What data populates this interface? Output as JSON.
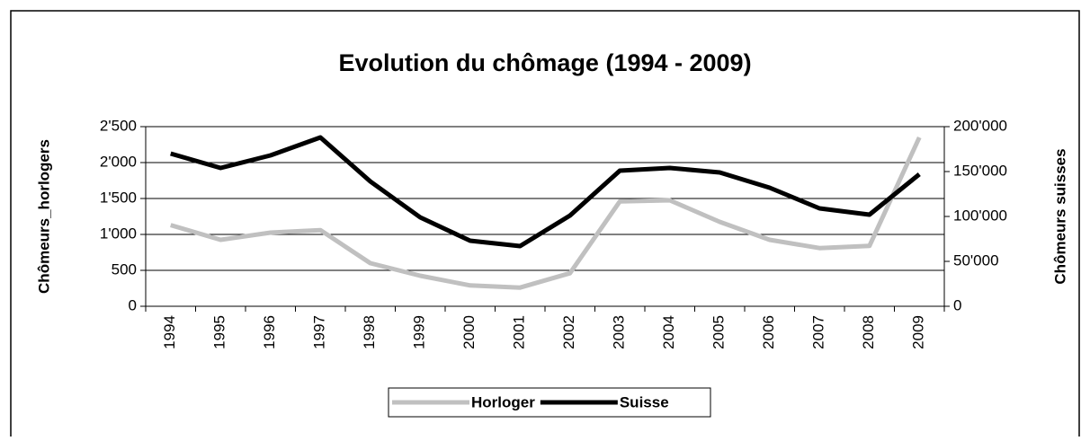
{
  "chart_data": {
    "type": "line",
    "title": "Evolution du chômage (1994 - 2009)",
    "y_label": "Chômeurs_horlogers",
    "y2_label": "Chômeurs suisses",
    "categories": [
      "1994",
      "1995",
      "1996",
      "1997",
      "1998",
      "1999",
      "2000",
      "2001",
      "2002",
      "2003",
      "2004",
      "2005",
      "2006",
      "2007",
      "2008",
      "2009"
    ],
    "series": [
      {
        "name": "Horloger",
        "color": "#c0c0c0",
        "values": [
          1130,
          925,
          1025,
          1060,
          600,
          425,
          290,
          260,
          460,
          1460,
          1475,
          1175,
          925,
          810,
          840,
          2350
        ]
      },
      {
        "name": "Suisse",
        "color": "#000000",
        "axis": "y2",
        "values": [
          170000,
          154000,
          168000,
          188000,
          139000,
          99000,
          73000,
          67000,
          101000,
          151000,
          154000,
          149000,
          132000,
          109000,
          102000,
          147000
        ]
      }
    ],
    "ylim": [
      0,
      2500
    ],
    "yticks": [
      0,
      500,
      {
        "value": 1000,
        "label": "1'000"
      },
      {
        "value": 1500,
        "label": "1'500"
      },
      {
        "value": 2000,
        "label": "2'000"
      },
      {
        "value": 2500,
        "label": "2'500"
      }
    ],
    "y2lim": [
      0,
      200000
    ],
    "y2ticks": [
      0,
      {
        "value": 50000,
        "label": "50'000"
      },
      {
        "value": 100000,
        "label": "100'000"
      },
      {
        "value": 150000,
        "label": "150'000"
      },
      {
        "value": 200000,
        "label": "200'000"
      }
    ],
    "grid": true,
    "legend": "bottom"
  }
}
